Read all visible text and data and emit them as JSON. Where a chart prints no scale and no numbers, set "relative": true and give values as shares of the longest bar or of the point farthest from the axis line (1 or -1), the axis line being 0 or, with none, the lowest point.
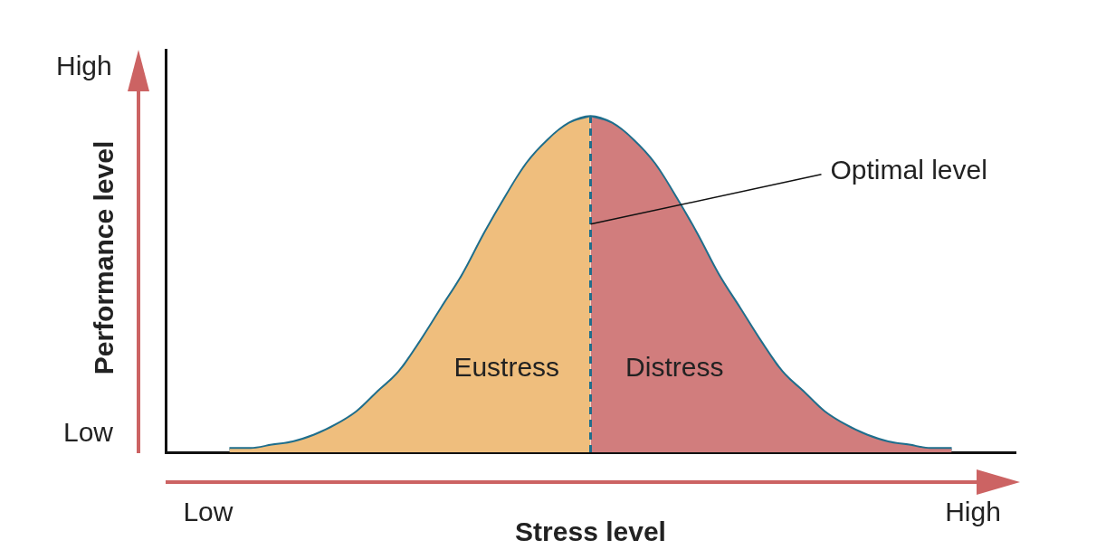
{
  "chart_data": {
    "type": "area",
    "relative": true,
    "xlabel": "Stress level",
    "ylabel": "Performance level",
    "categories": [
      null,
      null,
      "Low",
      null,
      null,
      null,
      null,
      null,
      null,
      null,
      null,
      null,
      null,
      null,
      null,
      null,
      null,
      null,
      null,
      null,
      null,
      null,
      null,
      null,
      null,
      null,
      null,
      null,
      null,
      null,
      null,
      null,
      null,
      null,
      null,
      null,
      null,
      null,
      "High",
      null,
      null
    ],
    "marker": "none",
    "grid": false,
    "legend": false,
    "series": [
      {
        "name": "Eustress",
        "color": "#efbe7d",
        "values": [
          null,
          null,
          null,
          0.01,
          0.01,
          0.02,
          0.03,
          0.05,
          0.08,
          0.12,
          0.18,
          0.24,
          0.33,
          0.43,
          0.53,
          0.65,
          0.76,
          0.86,
          0.93,
          0.98,
          1,
          null,
          null,
          null,
          null,
          null,
          null,
          null,
          null,
          null,
          null,
          null,
          null,
          null,
          null,
          null,
          null,
          null,
          null,
          null,
          null
        ]
      },
      {
        "name": "Distress",
        "color": "#d17d7d",
        "values": [
          null,
          null,
          null,
          null,
          null,
          null,
          null,
          null,
          null,
          null,
          null,
          null,
          null,
          null,
          null,
          null,
          null,
          null,
          null,
          null,
          1,
          0.98,
          0.93,
          0.86,
          0.76,
          0.65,
          0.53,
          0.43,
          0.33,
          0.24,
          0.18,
          0.12,
          0.08,
          0.05,
          0.03,
          0.02,
          0.01,
          0.01,
          null,
          null,
          null
        ]
      },
      {
        "type": "line",
        "color": "#1f6e8c",
        "values": [
          null,
          null,
          null,
          0.01,
          0.01,
          0.02,
          0.03,
          0.05,
          0.08,
          0.12,
          0.18,
          0.24,
          0.33,
          0.43,
          0.53,
          0.65,
          0.76,
          0.86,
          0.93,
          0.98,
          1,
          0.98,
          0.93,
          0.86,
          0.76,
          0.65,
          0.53,
          0.43,
          0.33,
          0.24,
          0.18,
          0.12,
          0.08,
          0.05,
          0.03,
          0.02,
          0.01,
          0.01,
          null,
          null,
          null
        ]
      }
    ],
    "ref_lines": [
      {
        "axis": "x",
        "value": null,
        "label": "Optimal level",
        "color": "#1f6e8c",
        "line_style": "dashed"
      }
    ],
    "annotations": [
      "Low",
      "High"
    ]
  }
}
